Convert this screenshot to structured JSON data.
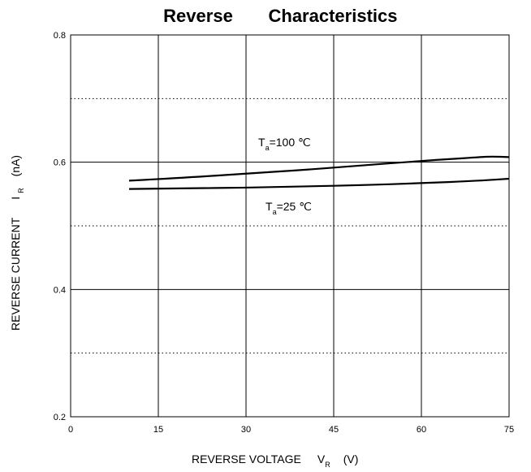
{
  "chart_data": {
    "type": "line",
    "title_part1": "Reverse",
    "title_part2": "Characteristics",
    "xlabel": {
      "main": "REVERSE VOLTAGE",
      "sym": "V",
      "sub": "R",
      "unit": "(V)"
    },
    "ylabel": {
      "main": "REVERSE CURRENT",
      "sym": "I",
      "sub": "R",
      "unit": "(nA)"
    },
    "xlim": [
      0,
      75
    ],
    "ylim": [
      0.2,
      0.8
    ],
    "x_ticks": [
      0,
      15,
      30,
      45,
      60,
      75
    ],
    "y_ticks_labeled": [
      {
        "v": 0.2,
        "t": "0.2"
      },
      {
        "v": 0.4,
        "t": "0.4"
      },
      {
        "v": 0.6,
        "t": "0.6"
      },
      {
        "v": 0.8,
        "t": "0.8"
      }
    ],
    "solid_hgrid": [
      0.4,
      0.6
    ],
    "dotted_hgrid": [
      0.3,
      0.5,
      0.7
    ],
    "grid": true,
    "series": [
      {
        "name": "Ta=100 ℃",
        "x": [
          10,
          20,
          30,
          40,
          50,
          60,
          65,
          70,
          72,
          75
        ],
        "y": [
          0.571,
          0.576,
          0.582,
          0.588,
          0.595,
          0.602,
          0.605,
          0.608,
          0.609,
          0.608
        ]
      },
      {
        "name": "Ta=25 ℃",
        "x": [
          10,
          20,
          30,
          40,
          50,
          60,
          70,
          75
        ],
        "y": [
          0.558,
          0.559,
          0.56,
          0.562,
          0.564,
          0.567,
          0.571,
          0.574
        ]
      }
    ],
    "annotations": [
      {
        "sym": "T",
        "sub": "a",
        "rest": "=100 ℃"
      },
      {
        "sym": "T",
        "sub": "a",
        "rest": "=25 ℃"
      }
    ]
  }
}
